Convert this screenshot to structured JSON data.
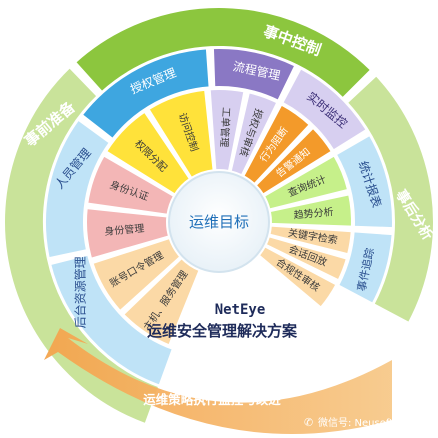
{
  "colors": {
    "outer_green": "#8cc63e",
    "outer_green_light": "#c9e39a",
    "blue": "#3ea6e0",
    "blue_light": "#bfe3f7",
    "purple": "#8a78c4",
    "purple_light": "#d7cff0",
    "yellow": "#ffe23a",
    "pink": "#f3b6b6",
    "orange": "#f39a2a",
    "lightgreen": "#c6f08a",
    "peach": "#fbd9a6",
    "center_text": "#1f6fb8",
    "title_text": "#1e2b5a"
  },
  "ring_outer": {
    "before": "事前准备",
    "during": "事中控制",
    "after": "事后分析"
  },
  "ring_middle": {
    "account": "后台资源管理",
    "people": "人员管理",
    "auth": "授权管理",
    "flow": "流程管理",
    "monitor": "实时监控",
    "stats": "统计报表",
    "trace": "事件追踪"
  },
  "ring_inner": {
    "access_policy": "访问控制",
    "auth_assign": "权限分配",
    "identity_auth": "身份认证",
    "identity_manage": "身份管理",
    "account_pwd": "账号口令管理",
    "host_service": "主机、服务管理",
    "ticket_manage": "工单管理",
    "auth_review": "授权与审核",
    "behavior": "行为阻断",
    "alarm": "告警通知",
    "query_stats": "查询统计",
    "trend": "趋势分析",
    "keyword": "关键字检索",
    "session": "会话回放",
    "compliance": "合规性审核"
  },
  "center": {
    "label": "运维目标"
  },
  "title": {
    "brand": "NetEye",
    "subtitle": "运维安全管理解决方案"
  },
  "arrow": {
    "label": "运维策略执行监控与改进"
  },
  "watermark": {
    "text": "微信号: Neusoft_NetEye"
  }
}
